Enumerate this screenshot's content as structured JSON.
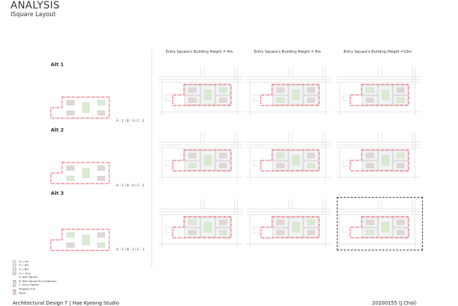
{
  "header": {
    "title": "ANALYSIS",
    "subtitle": "ISquare Layout"
  },
  "columns": [
    "Entry Square's Building Hieght = 4m",
    "Entry Square's Building Hieght = 8m",
    "Entry Square's Building Hieght =10m"
  ],
  "alternatives": [
    {
      "label": "Alt 1",
      "ratio": "A : 1 / B : 3 / C : 2"
    },
    {
      "label": "Alt 2",
      "ratio": "A : 1 / B : 4 / C : 2"
    },
    {
      "label": "Alt 3",
      "ratio": "A : 1 / B : 3 / C : 3"
    }
  ],
  "legend": [
    {
      "label": "H = 4m",
      "color": "#ffffff"
    },
    {
      "label": "H = 6m",
      "color": "#f6f6f6"
    },
    {
      "label": "H = 8m",
      "color": "#eeeeee"
    },
    {
      "label": "H = 10m",
      "color": "#e6e6e6"
    },
    {
      "label": "A. Rest Square",
      "color": "#ffffff"
    },
    {
      "label": "B. Rest Square By Exhibitions",
      "color": "#e2d6d6"
    },
    {
      "label": "C. Entry Square",
      "color": "#d9ecd2"
    },
    {
      "label": "Property line",
      "color": "#e8485a"
    },
    {
      "label": "Plaza",
      "color": "#dddddd"
    }
  ],
  "colors": {
    "property_line": "#e8485a",
    "rest_square_exhibitions": "#e2d6d6",
    "entry_square": "#d9ecd2",
    "road_lines": "#c8c8c8"
  },
  "selected_cell": {
    "alternative": "Alt 3",
    "column": "Entry Square's Building Hieght =10m"
  },
  "footer": {
    "left": "Architectural Design 7 | Hae Kyeong Studio",
    "right": "20200155 (J.Choi)"
  }
}
